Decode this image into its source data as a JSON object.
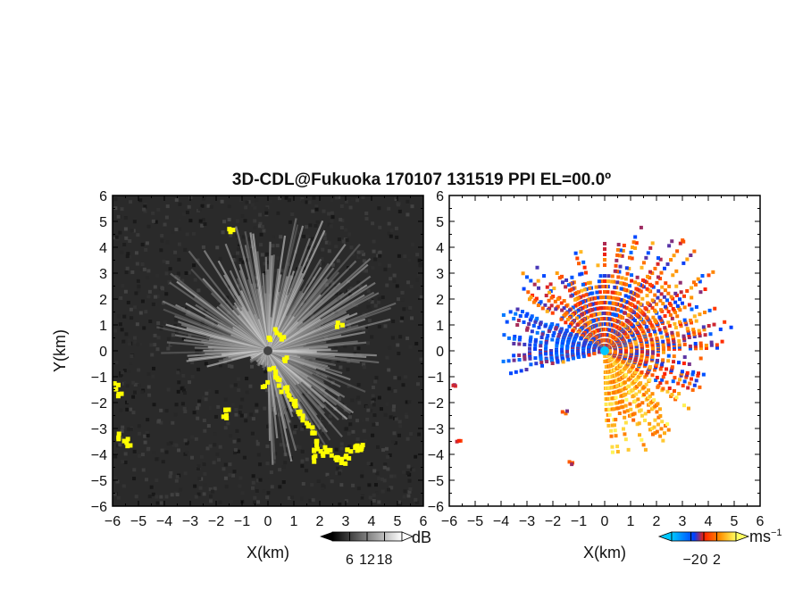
{
  "chart_data": [
    {
      "type": "heatmap",
      "title": "3D-CDL@Fukuoka 170107 131519 PPI EL=00.0º",
      "variable": "signal",
      "xlabel": "X(km)",
      "ylabel": "Y(km)",
      "xlim": [
        -6,
        6
      ],
      "ylim": [
        -6,
        6
      ],
      "xticks": [
        "−6",
        "−5",
        "−4",
        "−3",
        "−2",
        "−1",
        "0",
        "1",
        "2",
        "3",
        "4",
        "5",
        "6"
      ],
      "yticks": [
        "6",
        "5",
        "4",
        "3",
        "2",
        "1",
        "0",
        "−1",
        "−2",
        "−3",
        "−4",
        "−5",
        "−6"
      ],
      "background": "#2a2a2a",
      "overlay_color": "#ffff00",
      "colorbar": {
        "unit": "dB",
        "ticks": [
          "6",
          "12",
          "18"
        ],
        "range": [
          0,
          24
        ],
        "colors": [
          "#000000",
          "#ffffff"
        ]
      }
    },
    {
      "type": "heatmap",
      "variable": "radial velocity",
      "xlabel": "X(km)",
      "xlim": [
        -6,
        6
      ],
      "ylim": [
        -6,
        6
      ],
      "xticks": [
        "−6",
        "−5",
        "−4",
        "−3",
        "−2",
        "−1",
        "0",
        "1",
        "2",
        "3",
        "4",
        "5",
        "6"
      ],
      "yticks": [
        "6",
        "5",
        "4",
        "3",
        "2",
        "1",
        "0",
        "−1",
        "−2",
        "−3",
        "−4",
        "−5",
        "−6"
      ],
      "background": "#ffffff",
      "colorbar": {
        "unit": "ms",
        "unit_exp": "−1",
        "ticks": [
          "−2",
          "0",
          "2"
        ],
        "range": [
          -5,
          5
        ],
        "colors": [
          "#00c8ff",
          "#0040ff",
          "#ff2000",
          "#ff9000",
          "#ffff60"
        ]
      }
    }
  ]
}
